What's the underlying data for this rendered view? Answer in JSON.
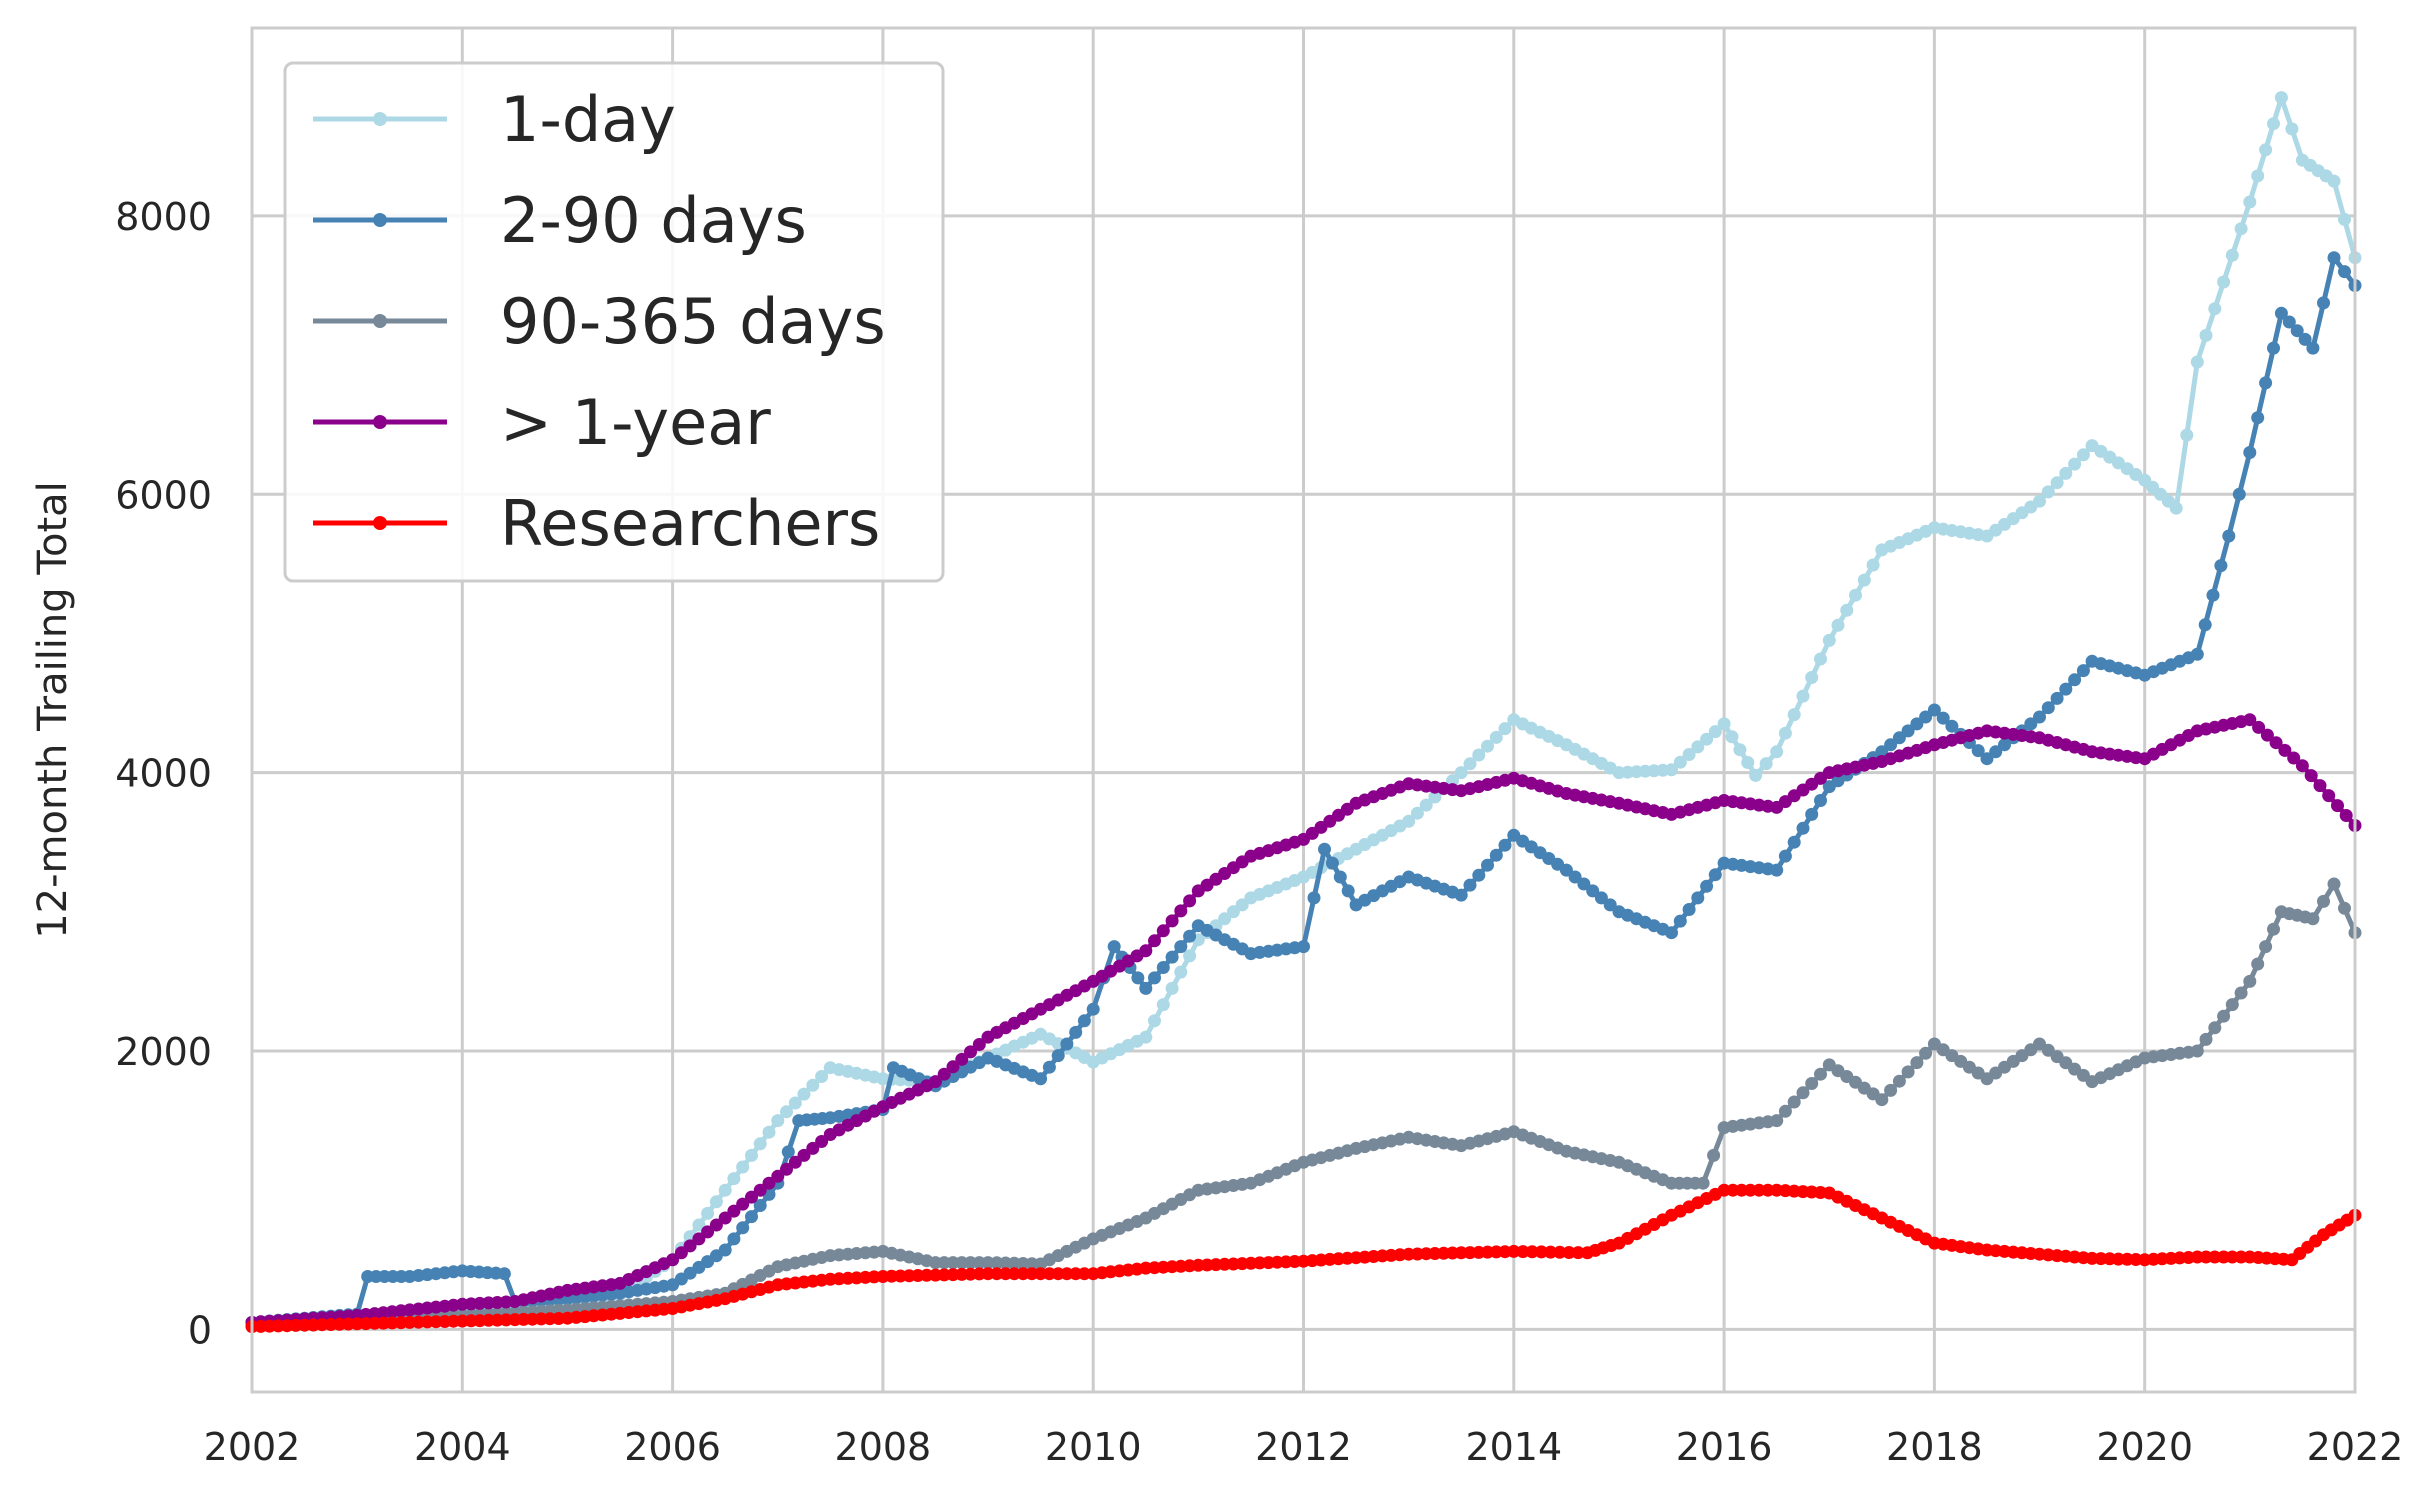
{
  "chart_data": {
    "type": "line",
    "title": "",
    "xlabel": "",
    "ylabel": "12-month Trailing Total",
    "xlim": [
      2002,
      2022
    ],
    "ylim": [
      -450,
      9350
    ],
    "xticks": [
      2002,
      2004,
      2006,
      2008,
      2010,
      2012,
      2014,
      2016,
      2018,
      2020,
      2022
    ],
    "yticks": [
      0,
      2000,
      4000,
      6000,
      8000
    ],
    "grid": true,
    "legend_position": "top-left",
    "marker": "circle",
    "series": [
      {
        "name": "1-day",
        "color": "#add8e6",
        "points": [
          [
            2002.0,
            50
          ],
          [
            2003.0,
            90
          ],
          [
            2004.0,
            130
          ],
          [
            2005.0,
            180
          ],
          [
            2005.5,
            250
          ],
          [
            2006.0,
            500
          ],
          [
            2006.5,
            1000
          ],
          [
            2007.0,
            1500
          ],
          [
            2007.5,
            1880
          ],
          [
            2008.0,
            1800
          ],
          [
            2008.5,
            1780
          ],
          [
            2009.0,
            1950
          ],
          [
            2009.5,
            2120
          ],
          [
            2010.0,
            1920
          ],
          [
            2010.5,
            2100
          ],
          [
            2011.0,
            2800
          ],
          [
            2011.5,
            3100
          ],
          [
            2012.0,
            3250
          ],
          [
            2012.5,
            3450
          ],
          [
            2013.0,
            3650
          ],
          [
            2013.5,
            4000
          ],
          [
            2014.0,
            4380
          ],
          [
            2014.5,
            4200
          ],
          [
            2015.0,
            4000
          ],
          [
            2015.5,
            4020
          ],
          [
            2016.0,
            4350
          ],
          [
            2016.3,
            3980
          ],
          [
            2016.5,
            4150
          ],
          [
            2017.0,
            4950
          ],
          [
            2017.5,
            5600
          ],
          [
            2018.0,
            5760
          ],
          [
            2018.5,
            5700
          ],
          [
            2019.0,
            5950
          ],
          [
            2019.5,
            6350
          ],
          [
            2020.0,
            6100
          ],
          [
            2020.3,
            5900
          ],
          [
            2020.5,
            6950
          ],
          [
            2021.0,
            8100
          ],
          [
            2021.3,
            8850
          ],
          [
            2021.5,
            8400
          ],
          [
            2021.8,
            8250
          ],
          [
            2022.0,
            7700
          ]
        ]
      },
      {
        "name": "2-90 days",
        "color": "#4682b4",
        "points": [
          [
            2002.0,
            50
          ],
          [
            2003.0,
            110
          ],
          [
            2003.1,
            380
          ],
          [
            2003.5,
            380
          ],
          [
            2004.0,
            420
          ],
          [
            2004.4,
            400
          ],
          [
            2004.5,
            200
          ],
          [
            2005.0,
            220
          ],
          [
            2005.5,
            260
          ],
          [
            2006.0,
            320
          ],
          [
            2006.5,
            570
          ],
          [
            2007.0,
            1050
          ],
          [
            2007.2,
            1500
          ],
          [
            2007.5,
            1520
          ],
          [
            2008.0,
            1580
          ],
          [
            2008.1,
            1880
          ],
          [
            2008.5,
            1750
          ],
          [
            2009.0,
            1950
          ],
          [
            2009.5,
            1800
          ],
          [
            2010.0,
            2300
          ],
          [
            2010.2,
            2750
          ],
          [
            2010.5,
            2450
          ],
          [
            2011.0,
            2900
          ],
          [
            2011.5,
            2700
          ],
          [
            2012.0,
            2750
          ],
          [
            2012.2,
            3450
          ],
          [
            2012.5,
            3050
          ],
          [
            2013.0,
            3250
          ],
          [
            2013.5,
            3120
          ],
          [
            2014.0,
            3550
          ],
          [
            2014.5,
            3300
          ],
          [
            2015.0,
            3000
          ],
          [
            2015.5,
            2850
          ],
          [
            2016.0,
            3350
          ],
          [
            2016.5,
            3300
          ],
          [
            2017.0,
            3900
          ],
          [
            2017.5,
            4150
          ],
          [
            2018.0,
            4450
          ],
          [
            2018.5,
            4100
          ],
          [
            2019.0,
            4400
          ],
          [
            2019.5,
            4800
          ],
          [
            2020.0,
            4700
          ],
          [
            2020.5,
            4850
          ],
          [
            2020.8,
            5700
          ],
          [
            2021.0,
            6300
          ],
          [
            2021.3,
            7300
          ],
          [
            2021.6,
            7050
          ],
          [
            2021.8,
            7700
          ],
          [
            2022.0,
            7500
          ]
        ]
      },
      {
        "name": "90-365 days",
        "color": "#778899",
        "points": [
          [
            2002.0,
            30
          ],
          [
            2003.0,
            60
          ],
          [
            2004.0,
            100
          ],
          [
            2005.0,
            140
          ],
          [
            2006.0,
            200
          ],
          [
            2006.5,
            260
          ],
          [
            2007.0,
            450
          ],
          [
            2007.5,
            530
          ],
          [
            2008.0,
            560
          ],
          [
            2008.5,
            480
          ],
          [
            2009.0,
            480
          ],
          [
            2009.5,
            470
          ],
          [
            2010.0,
            650
          ],
          [
            2010.5,
            800
          ],
          [
            2011.0,
            1000
          ],
          [
            2011.5,
            1050
          ],
          [
            2012.0,
            1200
          ],
          [
            2012.5,
            1300
          ],
          [
            2013.0,
            1380
          ],
          [
            2013.5,
            1320
          ],
          [
            2014.0,
            1420
          ],
          [
            2014.5,
            1280
          ],
          [
            2015.0,
            1200
          ],
          [
            2015.5,
            1050
          ],
          [
            2015.8,
            1050
          ],
          [
            2016.0,
            1450
          ],
          [
            2016.5,
            1500
          ],
          [
            2017.0,
            1900
          ],
          [
            2017.5,
            1650
          ],
          [
            2018.0,
            2050
          ],
          [
            2018.5,
            1800
          ],
          [
            2019.0,
            2050
          ],
          [
            2019.5,
            1780
          ],
          [
            2020.0,
            1950
          ],
          [
            2020.5,
            2000
          ],
          [
            2021.0,
            2500
          ],
          [
            2021.3,
            3000
          ],
          [
            2021.6,
            2950
          ],
          [
            2021.8,
            3200
          ],
          [
            2022.0,
            2850
          ]
        ]
      },
      {
        "name": "> 1-year",
        "color": "#8b008b",
        "points": [
          [
            2002.0,
            50
          ],
          [
            2003.0,
            100
          ],
          [
            2004.0,
            180
          ],
          [
            2004.5,
            200
          ],
          [
            2005.0,
            280
          ],
          [
            2005.5,
            330
          ],
          [
            2006.0,
            500
          ],
          [
            2006.5,
            800
          ],
          [
            2007.0,
            1100
          ],
          [
            2007.5,
            1400
          ],
          [
            2008.0,
            1600
          ],
          [
            2008.5,
            1780
          ],
          [
            2009.0,
            2100
          ],
          [
            2009.5,
            2300
          ],
          [
            2010.0,
            2500
          ],
          [
            2010.5,
            2720
          ],
          [
            2011.0,
            3150
          ],
          [
            2011.5,
            3400
          ],
          [
            2012.0,
            3520
          ],
          [
            2012.5,
            3780
          ],
          [
            2013.0,
            3920
          ],
          [
            2013.5,
            3870
          ],
          [
            2014.0,
            3960
          ],
          [
            2014.5,
            3850
          ],
          [
            2015.0,
            3780
          ],
          [
            2015.5,
            3700
          ],
          [
            2016.0,
            3800
          ],
          [
            2016.5,
            3750
          ],
          [
            2017.0,
            4000
          ],
          [
            2017.5,
            4080
          ],
          [
            2018.0,
            4200
          ],
          [
            2018.5,
            4300
          ],
          [
            2019.0,
            4250
          ],
          [
            2019.5,
            4150
          ],
          [
            2020.0,
            4100
          ],
          [
            2020.5,
            4300
          ],
          [
            2021.0,
            4380
          ],
          [
            2021.5,
            4050
          ],
          [
            2022.0,
            3620
          ]
        ]
      },
      {
        "name": "Researchers",
        "color": "#ff0000",
        "points": [
          [
            2002.0,
            20
          ],
          [
            2003.0,
            40
          ],
          [
            2004.0,
            60
          ],
          [
            2005.0,
            80
          ],
          [
            2006.0,
            150
          ],
          [
            2006.5,
            220
          ],
          [
            2007.0,
            320
          ],
          [
            2007.5,
            360
          ],
          [
            2008.0,
            380
          ],
          [
            2008.5,
            390
          ],
          [
            2009.0,
            400
          ],
          [
            2010.0,
            400
          ],
          [
            2010.5,
            440
          ],
          [
            2011.0,
            460
          ],
          [
            2012.0,
            490
          ],
          [
            2013.0,
            540
          ],
          [
            2014.0,
            560
          ],
          [
            2014.7,
            550
          ],
          [
            2015.0,
            620
          ],
          [
            2015.5,
            820
          ],
          [
            2016.0,
            1000
          ],
          [
            2016.5,
            1000
          ],
          [
            2017.0,
            980
          ],
          [
            2017.5,
            800
          ],
          [
            2018.0,
            620
          ],
          [
            2018.5,
            570
          ],
          [
            2019.0,
            540
          ],
          [
            2019.5,
            510
          ],
          [
            2020.0,
            500
          ],
          [
            2020.5,
            520
          ],
          [
            2021.0,
            520
          ],
          [
            2021.4,
            500
          ],
          [
            2021.7,
            680
          ],
          [
            2022.0,
            820
          ]
        ]
      }
    ]
  }
}
